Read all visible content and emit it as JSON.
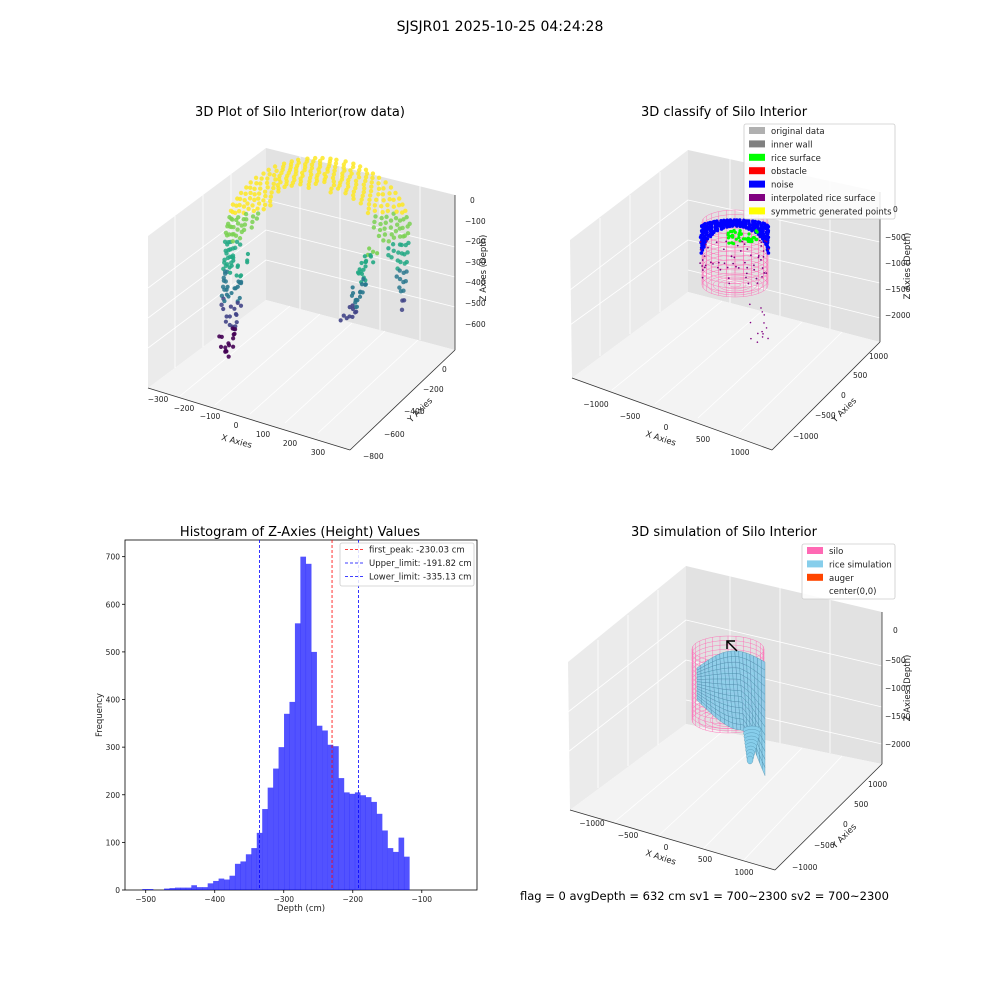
{
  "suptitle": "SJSJR01 2025-10-25 04:24:28",
  "status_text": "flag = 0     avgDepth = 632 cm  sv1 = 700~2300  sv2 = 700~2300",
  "chart_data": [
    {
      "type": "scatter",
      "kind": "3d",
      "title": "3D Plot of Silo Interior(row data)",
      "xlabel": "X Axies",
      "ylabel": "Y Axies",
      "zlabel": "Z Axies (Depth)",
      "x_ticks": [
        "−300",
        "−200",
        "−100",
        "0",
        "100",
        "200",
        "300"
      ],
      "y_ticks": [
        "−800",
        "−600",
        "−400",
        "−200",
        "0"
      ],
      "z_ticks": [
        "0",
        "−100",
        "−200",
        "−300",
        "−400",
        "−500",
        "−600"
      ],
      "colormap": [
        "#fde725",
        "#7ad151",
        "#22a884",
        "#2a788e",
        "#414487",
        "#440154"
      ]
    },
    {
      "type": "scatter",
      "kind": "3d",
      "title": "3D classify of Silo Interior",
      "xlabel": "X Axies",
      "ylabel": "Y Axies",
      "zlabel": "Z Axies (Depth)",
      "x_ticks": [
        "−1000",
        "−500",
        "0",
        "500",
        "1000"
      ],
      "y_ticks": [
        "−1000",
        "−500",
        "0",
        "500",
        "1000"
      ],
      "z_ticks": [
        "0",
        "−500",
        "−1000",
        "−1500",
        "−2000"
      ],
      "legend_position": "top-right",
      "legend": [
        {
          "label": "original data",
          "color": "#b0b0b0"
        },
        {
          "label": "inner wall",
          "color": "#808080"
        },
        {
          "label": "rice surface",
          "color": "#00ff00"
        },
        {
          "label": "obstacle",
          "color": "#ff0000"
        },
        {
          "label": "noise",
          "color": "#0000ff"
        },
        {
          "label": "interpolated rice surface",
          "color": "#800080"
        },
        {
          "label": "symmetric generated points",
          "color": "#ffff00"
        }
      ]
    },
    {
      "type": "bar",
      "kind": "histogram",
      "title": "Histogram of Z-Axies (Height) Values",
      "xlabel": "Depth (cm)",
      "ylabel": "Frequency",
      "xlim": [
        -530,
        -20
      ],
      "ylim": [
        0,
        735
      ],
      "x_ticks": [
        -500,
        -400,
        -300,
        -200,
        -100
      ],
      "y_ticks": [
        0,
        100,
        200,
        300,
        400,
        500,
        600,
        700
      ],
      "bar_color": "#0000ff",
      "bin_start": -505,
      "bin_width": 7.9,
      "values": [
        2,
        2,
        0,
        0,
        3,
        4,
        5,
        5,
        5,
        10,
        6,
        6,
        14,
        19,
        24,
        22,
        30,
        55,
        60,
        75,
        88,
        120,
        170,
        215,
        255,
        300,
        370,
        395,
        560,
        700,
        685,
        500,
        345,
        335,
        305,
        302,
        235,
        205,
        202,
        205,
        199,
        195,
        185,
        160,
        125,
        88,
        80,
        110,
        70
      ],
      "lines": [
        {
          "label": "first_peak: -230.03 cm",
          "x": -230.03,
          "color": "#ff0000"
        },
        {
          "label": "Upper_limit: -191.82 cm",
          "x": -191.82,
          "color": "#0000ff"
        },
        {
          "label": "Lower_limit: -335.13 cm",
          "x": -335.13,
          "color": "#0000ff"
        }
      ],
      "legend_position": "top-right"
    },
    {
      "type": "area",
      "kind": "3d-surface",
      "title": "3D simulation of Silo Interior",
      "xlabel": "X Axies",
      "ylabel": "Y Axies",
      "zlabel": "Z Axies (Depth)",
      "x_ticks": [
        "−1000",
        "−500",
        "0",
        "500",
        "1000"
      ],
      "y_ticks": [
        "−1000",
        "−500",
        "0",
        "500",
        "1000"
      ],
      "z_ticks": [
        "0",
        "−500",
        "−1000",
        "−1500",
        "−2000"
      ],
      "legend_position": "top-right",
      "legend": [
        {
          "label": "silo",
          "color": "#ff69b4"
        },
        {
          "label": "rice simulation",
          "color": "#87ceeb"
        },
        {
          "label": "auger",
          "color": "#ff4500"
        },
        {
          "label": "center(0,0)",
          "color": "none"
        }
      ]
    }
  ]
}
